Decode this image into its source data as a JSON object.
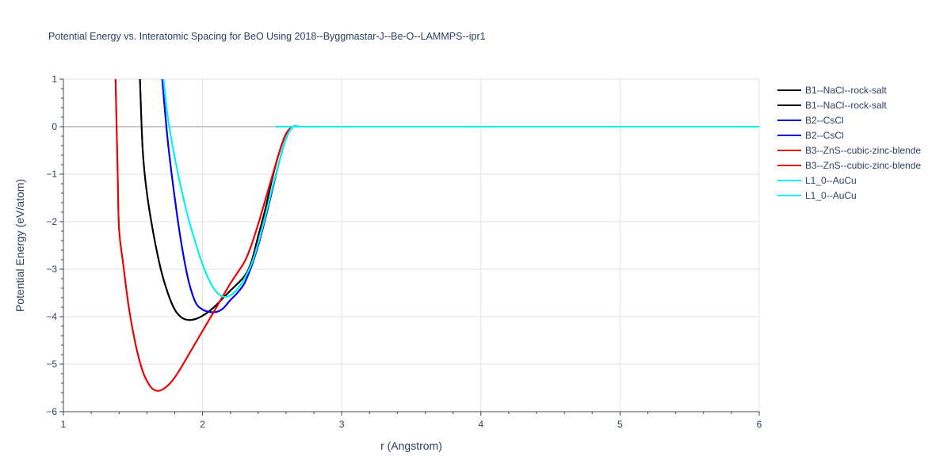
{
  "chart_data": {
    "type": "line",
    "title": "Potential Energy vs. Interatomic Spacing for BeO Using 2018--Byggmastar-J--Be-O--LAMMPS--ipr1",
    "xlabel": "r (Angstrom)",
    "ylabel": "Potential Energy (eV/atom)",
    "xlim": [
      1,
      6
    ],
    "ylim": [
      -6,
      1
    ],
    "xticks": [
      "1",
      "2",
      "3",
      "4",
      "5",
      "6"
    ],
    "yticks": [
      "1",
      "0",
      "−1",
      "−2",
      "−3",
      "−4",
      "−5",
      "−6"
    ],
    "grid": true,
    "legend_position": "top-right",
    "series": [
      {
        "name": "B1--NaCl--rock-salt",
        "color": "#000000",
        "x": [
          1.55,
          1.57,
          1.6,
          1.65,
          1.7,
          1.75,
          1.8,
          1.85,
          1.9,
          1.95,
          2.0,
          2.05,
          2.1,
          2.15,
          2.2,
          2.3,
          2.35,
          2.4,
          2.45,
          2.5,
          2.55,
          2.6,
          2.65,
          2.7,
          2.8,
          6.0
        ],
        "y": [
          1.0,
          -0.5,
          -1.4,
          -2.3,
          -3.0,
          -3.5,
          -3.85,
          -4.02,
          -4.07,
          -4.05,
          -3.98,
          -3.88,
          -3.75,
          -3.6,
          -3.45,
          -3.15,
          -2.85,
          -2.3,
          -1.75,
          -1.1,
          -0.55,
          -0.15,
          0.0,
          0.0,
          0.0,
          0.0
        ]
      },
      {
        "name": "B1--NaCl--rock-salt",
        "color": "#000000",
        "x": [
          1.55,
          1.57,
          1.6,
          1.65,
          1.7,
          1.75,
          1.8,
          1.85,
          1.9,
          1.95,
          2.0,
          2.05,
          2.1,
          2.15,
          2.2,
          2.3,
          2.35,
          2.4,
          2.45,
          2.5,
          2.55,
          2.6,
          2.65,
          2.7,
          2.8,
          6.0
        ],
        "y": [
          1.0,
          -0.5,
          -1.4,
          -2.3,
          -3.0,
          -3.5,
          -3.85,
          -4.02,
          -4.07,
          -4.05,
          -3.98,
          -3.88,
          -3.75,
          -3.6,
          -3.45,
          -3.15,
          -2.85,
          -2.3,
          -1.75,
          -1.1,
          -0.55,
          -0.15,
          0.0,
          0.0,
          0.0,
          0.0
        ]
      },
      {
        "name": "B2--CsCl",
        "color": "#0000ee",
        "x": [
          1.71,
          1.75,
          1.8,
          1.85,
          1.9,
          1.95,
          2.0,
          2.05,
          2.1,
          2.15,
          2.2,
          2.25,
          2.3,
          2.35,
          2.4,
          2.45,
          2.5,
          2.55,
          2.6,
          2.65,
          2.7,
          2.8,
          6.0
        ],
        "y": [
          1.0,
          -0.3,
          -1.5,
          -2.5,
          -3.25,
          -3.7,
          -3.85,
          -3.9,
          -3.9,
          -3.82,
          -3.65,
          -3.5,
          -3.3,
          -2.95,
          -2.5,
          -1.95,
          -1.35,
          -0.75,
          -0.25,
          0.0,
          0.0,
          0.0,
          0.0
        ]
      },
      {
        "name": "B2--CsCl",
        "color": "#0000ee",
        "x": [
          1.71,
          1.75,
          1.8,
          1.85,
          1.9,
          1.95,
          2.0,
          2.05,
          2.1,
          2.15,
          2.2,
          2.25,
          2.3,
          2.35,
          2.4,
          2.45,
          2.5,
          2.55,
          2.6,
          2.65,
          2.7,
          2.8,
          6.0
        ],
        "y": [
          1.0,
          -0.3,
          -1.5,
          -2.5,
          -3.25,
          -3.7,
          -3.85,
          -3.9,
          -3.9,
          -3.82,
          -3.65,
          -3.5,
          -3.3,
          -2.95,
          -2.5,
          -1.95,
          -1.35,
          -0.75,
          -0.25,
          0.0,
          0.0,
          0.0,
          0.0
        ]
      },
      {
        "name": "B3--ZnS--cubic-zinc-blende",
        "color": "#ee0000",
        "x": [
          1.375,
          1.39,
          1.4,
          1.43,
          1.47,
          1.52,
          1.57,
          1.62,
          1.66,
          1.7,
          1.75,
          1.8,
          1.85,
          1.9,
          1.95,
          2.0,
          2.1,
          2.2,
          2.3,
          2.35,
          2.4,
          2.45,
          2.5,
          2.55,
          2.6,
          2.65,
          2.7,
          2.8,
          6.0
        ],
        "y": [
          1.0,
          -1.0,
          -2.15,
          -2.9,
          -3.8,
          -4.6,
          -5.15,
          -5.45,
          -5.55,
          -5.55,
          -5.45,
          -5.28,
          -5.05,
          -4.8,
          -4.55,
          -4.3,
          -3.8,
          -3.3,
          -2.85,
          -2.5,
          -2.05,
          -1.55,
          -1.05,
          -0.55,
          -0.15,
          0.0,
          0.0,
          0.0,
          0.0
        ]
      },
      {
        "name": "B3--ZnS--cubic-zinc-blende",
        "color": "#ee0000",
        "x": [
          1.375,
          1.39,
          1.4,
          1.43,
          1.47,
          1.52,
          1.57,
          1.62,
          1.66,
          1.7,
          1.75,
          1.8,
          1.85,
          1.9,
          1.95,
          2.0,
          2.1,
          2.2,
          2.3,
          2.35,
          2.4,
          2.45,
          2.5,
          2.55,
          2.6,
          2.65,
          2.7,
          2.8,
          6.0
        ],
        "y": [
          1.0,
          -1.0,
          -2.15,
          -2.9,
          -3.8,
          -4.6,
          -5.15,
          -5.45,
          -5.55,
          -5.55,
          -5.45,
          -5.28,
          -5.05,
          -4.8,
          -4.55,
          -4.3,
          -3.8,
          -3.3,
          -2.85,
          -2.5,
          -2.05,
          -1.55,
          -1.05,
          -0.55,
          -0.15,
          0.0,
          0.0,
          0.0,
          0.0
        ]
      },
      {
        "name": "L1_0--AuCu",
        "color": "#00f2f2",
        "x": [
          1.72,
          1.75,
          1.8,
          1.85,
          1.9,
          1.95,
          2.0,
          2.05,
          2.1,
          2.15,
          2.2,
          2.25,
          2.3,
          2.35,
          2.4,
          2.45,
          2.5,
          2.55,
          2.6,
          2.65,
          2.7,
          2.8,
          6.0
        ],
        "y": [
          1.0,
          0.2,
          -0.65,
          -1.35,
          -1.95,
          -2.45,
          -2.9,
          -3.25,
          -3.48,
          -3.58,
          -3.55,
          -3.42,
          -3.2,
          -2.9,
          -2.45,
          -1.9,
          -1.3,
          -0.75,
          -0.25,
          0.0,
          0.0,
          0.0,
          0.0
        ]
      },
      {
        "name": "L1_0--AuCu",
        "color": "#00f2f2",
        "x": [
          1.72,
          1.75,
          1.8,
          1.85,
          1.9,
          1.95,
          2.0,
          2.05,
          2.1,
          2.15,
          2.2,
          2.25,
          2.3,
          2.35,
          2.4,
          2.45,
          2.5,
          2.55,
          2.6,
          2.65,
          2.7,
          2.8,
          6.0
        ],
        "y": [
          1.0,
          0.2,
          -0.65,
          -1.35,
          -1.95,
          -2.45,
          -2.9,
          -3.25,
          -3.48,
          -3.58,
          -3.55,
          -3.42,
          -3.2,
          -2.9,
          -2.45,
          -1.9,
          -1.3,
          -0.75,
          -0.25,
          0.0,
          0.0,
          0.0,
          0.0
        ]
      }
    ]
  }
}
